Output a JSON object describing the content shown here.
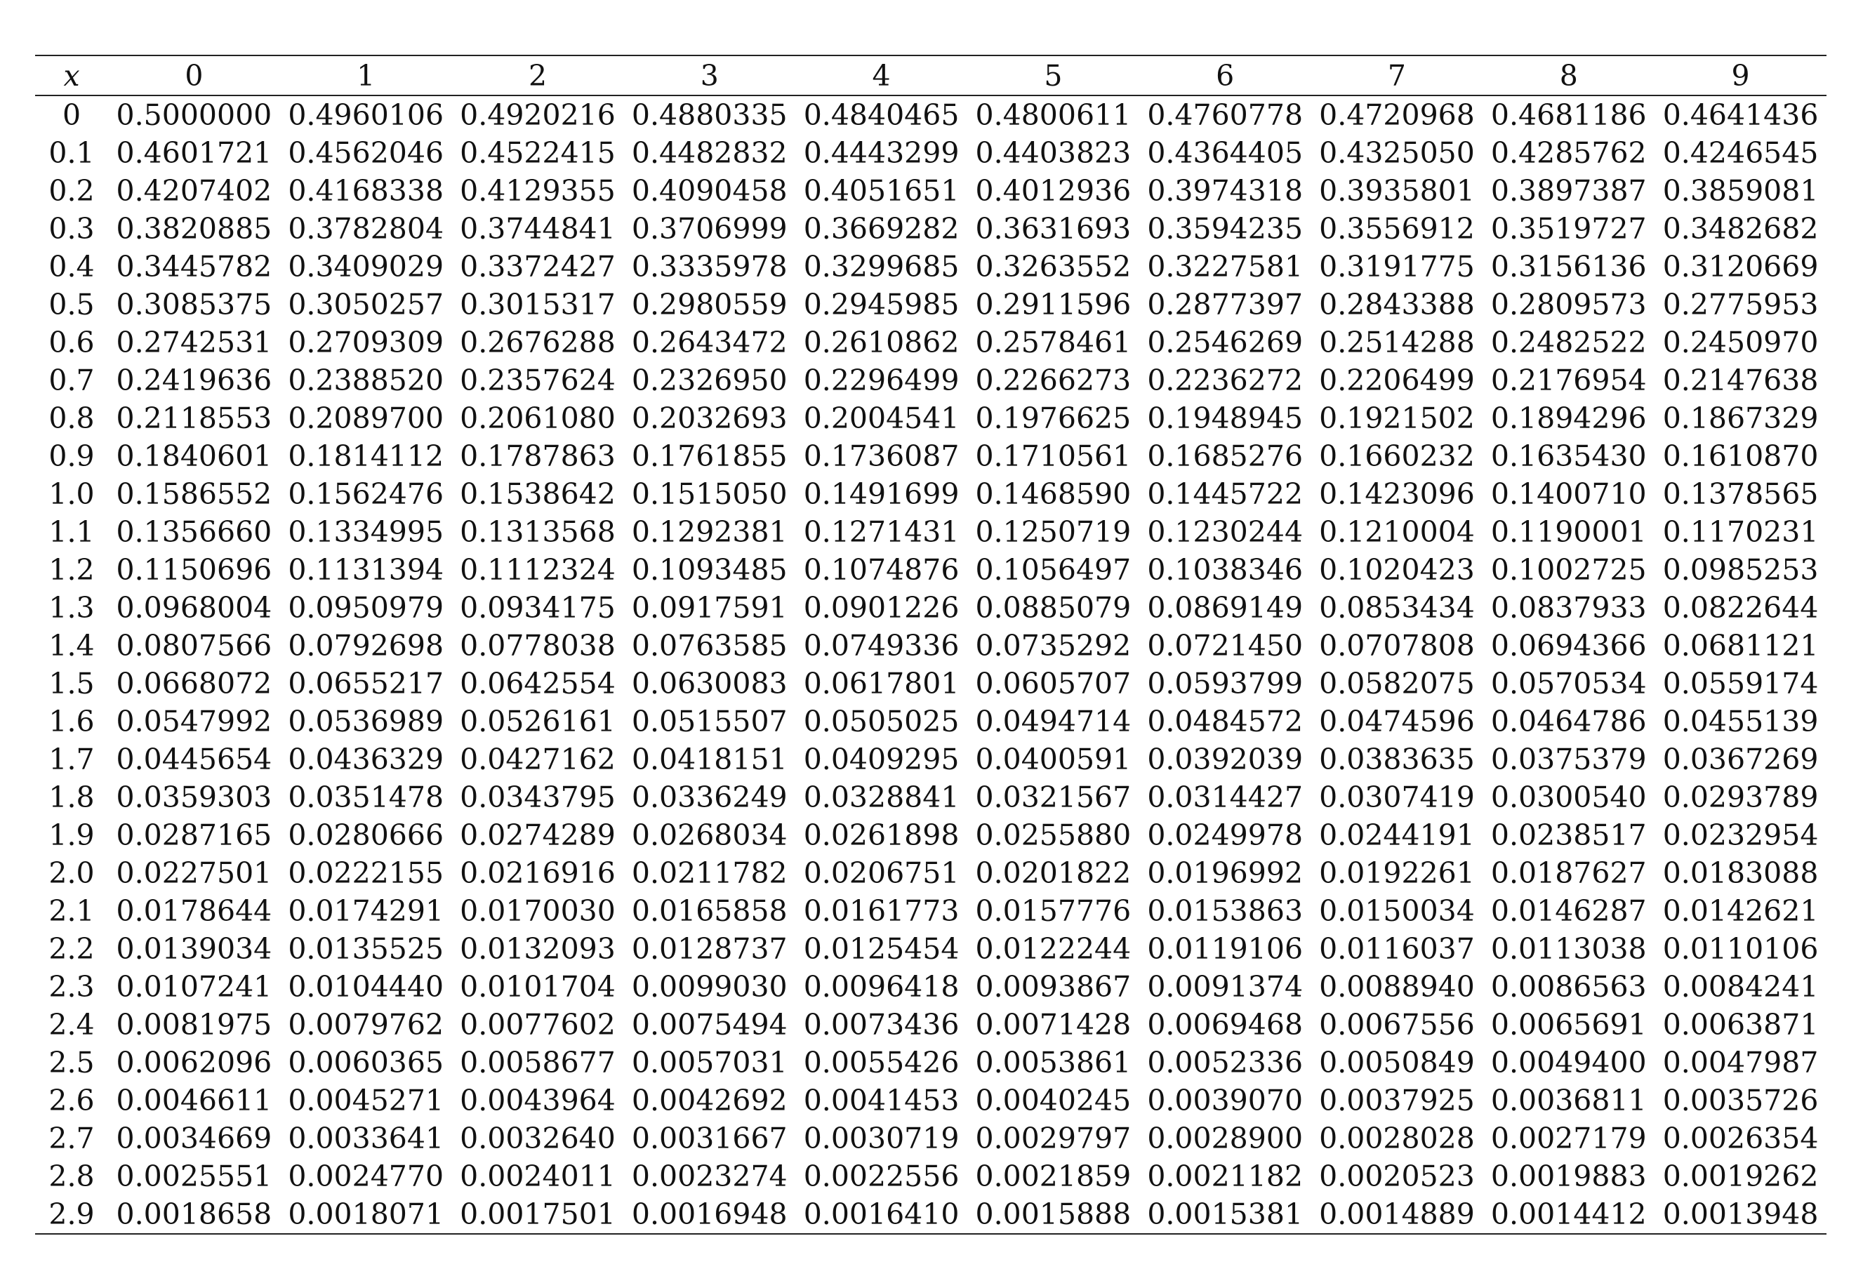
{
  "table": {
    "x_header": "x",
    "columns": [
      "0",
      "1",
      "2",
      "3",
      "4",
      "5",
      "6",
      "7",
      "8",
      "9"
    ],
    "rows": [
      {
        "x": "0",
        "values": [
          "0.5000000",
          "0.4960106",
          "0.4920216",
          "0.4880335",
          "0.4840465",
          "0.4800611",
          "0.4760778",
          "0.4720968",
          "0.4681186",
          "0.4641436"
        ]
      },
      {
        "x": "0.1",
        "values": [
          "0.4601721",
          "0.4562046",
          "0.4522415",
          "0.4482832",
          "0.4443299",
          "0.4403823",
          "0.4364405",
          "0.4325050",
          "0.4285762",
          "0.4246545"
        ]
      },
      {
        "x": "0.2",
        "values": [
          "0.4207402",
          "0.4168338",
          "0.4129355",
          "0.4090458",
          "0.4051651",
          "0.4012936",
          "0.3974318",
          "0.3935801",
          "0.3897387",
          "0.3859081"
        ]
      },
      {
        "x": "0.3",
        "values": [
          "0.3820885",
          "0.3782804",
          "0.3744841",
          "0.3706999",
          "0.3669282",
          "0.3631693",
          "0.3594235",
          "0.3556912",
          "0.3519727",
          "0.3482682"
        ]
      },
      {
        "x": "0.4",
        "values": [
          "0.3445782",
          "0.3409029",
          "0.3372427",
          "0.3335978",
          "0.3299685",
          "0.3263552",
          "0.3227581",
          "0.3191775",
          "0.3156136",
          "0.3120669"
        ]
      },
      {
        "x": "0.5",
        "values": [
          "0.3085375",
          "0.3050257",
          "0.3015317",
          "0.2980559",
          "0.2945985",
          "0.2911596",
          "0.2877397",
          "0.2843388",
          "0.2809573",
          "0.2775953"
        ]
      },
      {
        "x": "0.6",
        "values": [
          "0.2742531",
          "0.2709309",
          "0.2676288",
          "0.2643472",
          "0.2610862",
          "0.2578461",
          "0.2546269",
          "0.2514288",
          "0.2482522",
          "0.2450970"
        ]
      },
      {
        "x": "0.7",
        "values": [
          "0.2419636",
          "0.2388520",
          "0.2357624",
          "0.2326950",
          "0.2296499",
          "0.2266273",
          "0.2236272",
          "0.2206499",
          "0.2176954",
          "0.2147638"
        ]
      },
      {
        "x": "0.8",
        "values": [
          "0.2118553",
          "0.2089700",
          "0.2061080",
          "0.2032693",
          "0.2004541",
          "0.1976625",
          "0.1948945",
          "0.1921502",
          "0.1894296",
          "0.1867329"
        ]
      },
      {
        "x": "0.9",
        "values": [
          "0.1840601",
          "0.1814112",
          "0.1787863",
          "0.1761855",
          "0.1736087",
          "0.1710561",
          "0.1685276",
          "0.1660232",
          "0.1635430",
          "0.1610870"
        ]
      },
      {
        "x": "1.0",
        "values": [
          "0.1586552",
          "0.1562476",
          "0.1538642",
          "0.1515050",
          "0.1491699",
          "0.1468590",
          "0.1445722",
          "0.1423096",
          "0.1400710",
          "0.1378565"
        ]
      },
      {
        "x": "1.1",
        "values": [
          "0.1356660",
          "0.1334995",
          "0.1313568",
          "0.1292381",
          "0.1271431",
          "0.1250719",
          "0.1230244",
          "0.1210004",
          "0.1190001",
          "0.1170231"
        ]
      },
      {
        "x": "1.2",
        "values": [
          "0.1150696",
          "0.1131394",
          "0.1112324",
          "0.1093485",
          "0.1074876",
          "0.1056497",
          "0.1038346",
          "0.1020423",
          "0.1002725",
          "0.0985253"
        ]
      },
      {
        "x": "1.3",
        "values": [
          "0.0968004",
          "0.0950979",
          "0.0934175",
          "0.0917591",
          "0.0901226",
          "0.0885079",
          "0.0869149",
          "0.0853434",
          "0.0837933",
          "0.0822644"
        ]
      },
      {
        "x": "1.4",
        "values": [
          "0.0807566",
          "0.0792698",
          "0.0778038",
          "0.0763585",
          "0.0749336",
          "0.0735292",
          "0.0721450",
          "0.0707808",
          "0.0694366",
          "0.0681121"
        ]
      },
      {
        "x": "1.5",
        "values": [
          "0.0668072",
          "0.0655217",
          "0.0642554",
          "0.0630083",
          "0.0617801",
          "0.0605707",
          "0.0593799",
          "0.0582075",
          "0.0570534",
          "0.0559174"
        ]
      },
      {
        "x": "1.6",
        "values": [
          "0.0547992",
          "0.0536989",
          "0.0526161",
          "0.0515507",
          "0.0505025",
          "0.0494714",
          "0.0484572",
          "0.0474596",
          "0.0464786",
          "0.0455139"
        ]
      },
      {
        "x": "1.7",
        "values": [
          "0.0445654",
          "0.0436329",
          "0.0427162",
          "0.0418151",
          "0.0409295",
          "0.0400591",
          "0.0392039",
          "0.0383635",
          "0.0375379",
          "0.0367269"
        ]
      },
      {
        "x": "1.8",
        "values": [
          "0.0359303",
          "0.0351478",
          "0.0343795",
          "0.0336249",
          "0.0328841",
          "0.0321567",
          "0.0314427",
          "0.0307419",
          "0.0300540",
          "0.0293789"
        ]
      },
      {
        "x": "1.9",
        "values": [
          "0.0287165",
          "0.0280666",
          "0.0274289",
          "0.0268034",
          "0.0261898",
          "0.0255880",
          "0.0249978",
          "0.0244191",
          "0.0238517",
          "0.0232954"
        ]
      },
      {
        "x": "2.0",
        "values": [
          "0.0227501",
          "0.0222155",
          "0.0216916",
          "0.0211782",
          "0.0206751",
          "0.0201822",
          "0.0196992",
          "0.0192261",
          "0.0187627",
          "0.0183088"
        ]
      },
      {
        "x": "2.1",
        "values": [
          "0.0178644",
          "0.0174291",
          "0.0170030",
          "0.0165858",
          "0.0161773",
          "0.0157776",
          "0.0153863",
          "0.0150034",
          "0.0146287",
          "0.0142621"
        ]
      },
      {
        "x": "2.2",
        "values": [
          "0.0139034",
          "0.0135525",
          "0.0132093",
          "0.0128737",
          "0.0125454",
          "0.0122244",
          "0.0119106",
          "0.0116037",
          "0.0113038",
          "0.0110106"
        ]
      },
      {
        "x": "2.3",
        "values": [
          "0.0107241",
          "0.0104440",
          "0.0101704",
          "0.0099030",
          "0.0096418",
          "0.0093867",
          "0.0091374",
          "0.0088940",
          "0.0086563",
          "0.0084241"
        ]
      },
      {
        "x": "2.4",
        "values": [
          "0.0081975",
          "0.0079762",
          "0.0077602",
          "0.0075494",
          "0.0073436",
          "0.0071428",
          "0.0069468",
          "0.0067556",
          "0.0065691",
          "0.0063871"
        ]
      },
      {
        "x": "2.5",
        "values": [
          "0.0062096",
          "0.0060365",
          "0.0058677",
          "0.0057031",
          "0.0055426",
          "0.0053861",
          "0.0052336",
          "0.0050849",
          "0.0049400",
          "0.0047987"
        ]
      },
      {
        "x": "2.6",
        "values": [
          "0.0046611",
          "0.0045271",
          "0.0043964",
          "0.0042692",
          "0.0041453",
          "0.0040245",
          "0.0039070",
          "0.0037925",
          "0.0036811",
          "0.0035726"
        ]
      },
      {
        "x": "2.7",
        "values": [
          "0.0034669",
          "0.0033641",
          "0.0032640",
          "0.0031667",
          "0.0030719",
          "0.0029797",
          "0.0028900",
          "0.0028028",
          "0.0027179",
          "0.0026354"
        ]
      },
      {
        "x": "2.8",
        "values": [
          "0.0025551",
          "0.0024770",
          "0.0024011",
          "0.0023274",
          "0.0022556",
          "0.0021859",
          "0.0021182",
          "0.0020523",
          "0.0019883",
          "0.0019262"
        ]
      },
      {
        "x": "2.9",
        "values": [
          "0.0018658",
          "0.0018071",
          "0.0017501",
          "0.0016948",
          "0.0016410",
          "0.0015888",
          "0.0015381",
          "0.0014889",
          "0.0014412",
          "0.0013948"
        ]
      }
    ]
  }
}
